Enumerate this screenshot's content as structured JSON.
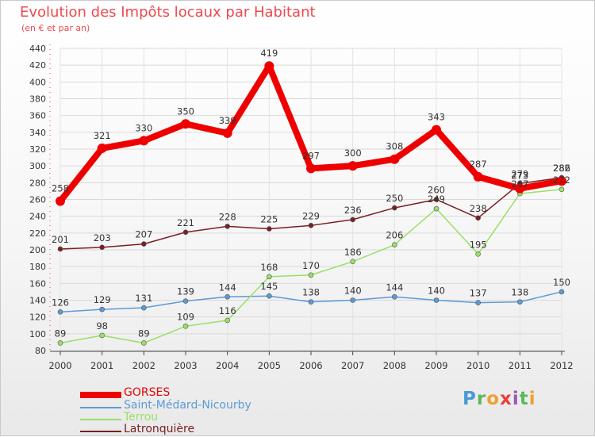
{
  "title": "Evolution des Impôts locaux par Habitant",
  "subtitle": "(en € et par an)",
  "logo": {
    "letters": [
      "P",
      "r",
      "o",
      "x",
      "i",
      "t",
      "i"
    ],
    "colors": [
      "#4a9ad6",
      "#5cb85c",
      "#f0a030",
      "#e8403c",
      "#9b59b6",
      "#5cb85c",
      "#f0a030"
    ]
  },
  "chart_data": {
    "type": "line",
    "x": [
      "2000",
      "2001",
      "2002",
      "2003",
      "2004",
      "2005",
      "2006",
      "2007",
      "2008",
      "2009",
      "2010",
      "2011",
      "2012"
    ],
    "ylim": [
      80,
      440
    ],
    "yticks": [
      80,
      100,
      120,
      140,
      160,
      180,
      200,
      220,
      240,
      260,
      280,
      300,
      320,
      340,
      360,
      380,
      400,
      420,
      440
    ],
    "grid": true,
    "legend_position": "bottom-left",
    "series": [
      {
        "name": "GORSES",
        "color": "#ee0000",
        "values": [
          258,
          321,
          330,
          350,
          339,
          419,
          297,
          300,
          308,
          343,
          287,
          273,
          282
        ]
      },
      {
        "name": "Saint-Médard-Nicourby",
        "color": "#5b9bd5",
        "values": [
          126,
          129,
          131,
          139,
          144,
          145,
          138,
          140,
          144,
          140,
          137,
          138,
          150
        ]
      },
      {
        "name": "Terrou",
        "color": "#99e066",
        "values": [
          89,
          98,
          89,
          109,
          116,
          168,
          170,
          186,
          206,
          249,
          195,
          267,
          272
        ]
      },
      {
        "name": "Latronquière",
        "color": "#7a1f22",
        "values": [
          201,
          203,
          207,
          221,
          228,
          225,
          229,
          236,
          250,
          260,
          238,
          279,
          286
        ]
      }
    ]
  }
}
